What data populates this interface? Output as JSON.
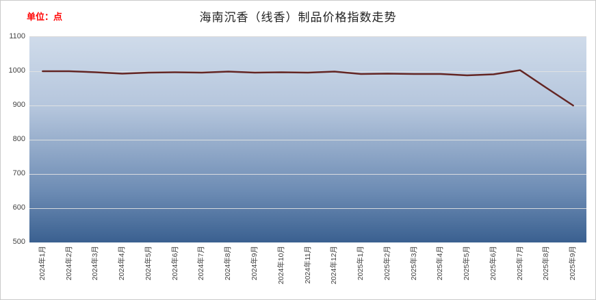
{
  "unit_label": "单位：点",
  "unit_label_color": "#ff0000",
  "chart_data": {
    "type": "line",
    "title": "海南沉香（线香）制品价格指数走势",
    "categories": [
      "2024年1月",
      "2024年2月",
      "2024年3月",
      "2024年4月",
      "2024年5月",
      "2024年6月",
      "2024年7月",
      "2024年8月",
      "2024年9月",
      "2024年10月",
      "2024年11月",
      "2024年12月",
      "2025年1月",
      "2025年2月",
      "2025年3月",
      "2025年4月",
      "2025年5月",
      "2025年6月",
      "2025年7月",
      "2025年8月",
      "2025年9月"
    ],
    "values": [
      1000,
      1000,
      997,
      993,
      996,
      997,
      996,
      999,
      996,
      997,
      996,
      999,
      992,
      993,
      992,
      992,
      988,
      991,
      1003,
      951,
      900
    ],
    "ylim": [
      500,
      1100
    ],
    "yticks": [
      1100,
      1000,
      900,
      800,
      700,
      600,
      500
    ],
    "grid": true,
    "legend": "none",
    "line_color": "#632523",
    "plot_bg_top": "#cfdbea",
    "plot_bg_bottom": "#3a6090"
  }
}
